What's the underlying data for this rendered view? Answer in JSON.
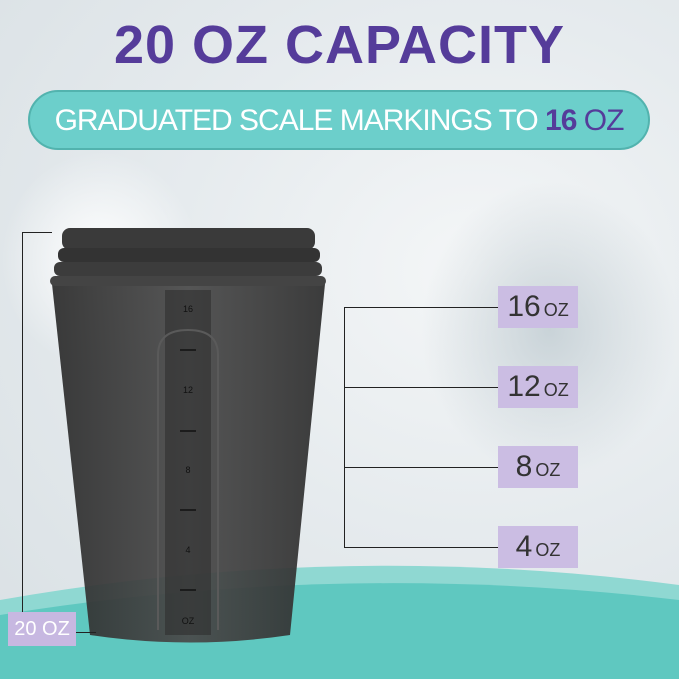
{
  "title": "20 OZ CAPACITY",
  "banner": {
    "text": "GRADUATED SCALE MARKINGS TO",
    "highlight": "16",
    "unit": "OZ"
  },
  "capacity_label": {
    "value": "20",
    "unit": "OZ"
  },
  "scale_labels": [
    {
      "value": "16",
      "unit": "OZ"
    },
    {
      "value": "12",
      "unit": "OZ"
    },
    {
      "value": "8",
      "unit": "OZ"
    },
    {
      "value": "4",
      "unit": "OZ"
    }
  ],
  "cup_markings": [
    "16",
    "12",
    "8",
    "4",
    "OZ"
  ],
  "colors": {
    "purple": "#553c9a",
    "teal": "#6ccfcb",
    "lilac": "#cbbde3",
    "cup": "#3a3a3a"
  }
}
